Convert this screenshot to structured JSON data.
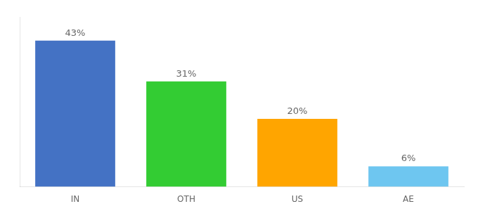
{
  "chart_data": {
    "type": "bar",
    "categories": [
      "IN",
      "OTH",
      "US",
      "AE"
    ],
    "values": [
      43,
      31,
      20,
      6
    ],
    "value_labels": [
      "43%",
      "31%",
      "20%",
      "6%"
    ],
    "colors": [
      "#4472C4",
      "#33CC33",
      "#FFA500",
      "#6EC6F0"
    ],
    "ylim": [
      0,
      50
    ],
    "data_labels": true,
    "tick_labels": "x",
    "grid": false
  }
}
